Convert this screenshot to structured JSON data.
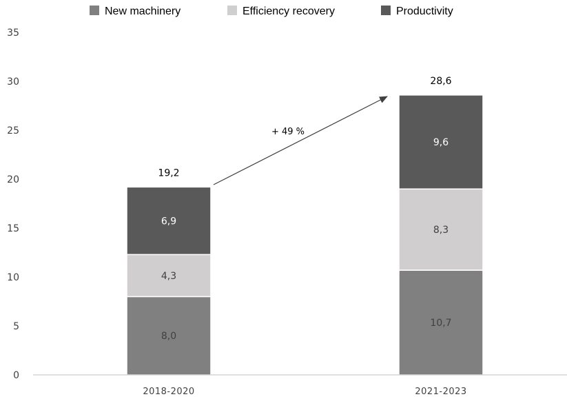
{
  "chart_data": {
    "type": "bar",
    "stacked": true,
    "categories": [
      "2018-2020",
      "2021-2023"
    ],
    "series": [
      {
        "name": "New machinery",
        "values": [
          8.0,
          10.7
        ],
        "labels": [
          "8,0",
          "10,7"
        ],
        "color": "#808080",
        "label_color": "#404040"
      },
      {
        "name": "Efficiency recovery",
        "values": [
          4.3,
          8.3
        ],
        "labels": [
          "4,3",
          "8,3"
        ],
        "color": "#d0cece",
        "label_color": "#404040"
      },
      {
        "name": "Productivity",
        "values": [
          6.9,
          9.6
        ],
        "labels": [
          "6,9",
          "9,6"
        ],
        "color": "#595959",
        "label_color": "#ffffff"
      }
    ],
    "totals": [
      "19,2",
      "28,6"
    ],
    "ylim": [
      0,
      35
    ],
    "yticks": [
      "0",
      "5",
      "10",
      "15",
      "20",
      "25",
      "30",
      "35"
    ],
    "ytick_values": [
      0,
      5,
      10,
      15,
      20,
      25,
      30,
      35
    ],
    "grid": false,
    "legend_position": "top",
    "annotation": {
      "text": "+ 49 %",
      "from_category": 0,
      "to_category": 1
    }
  }
}
